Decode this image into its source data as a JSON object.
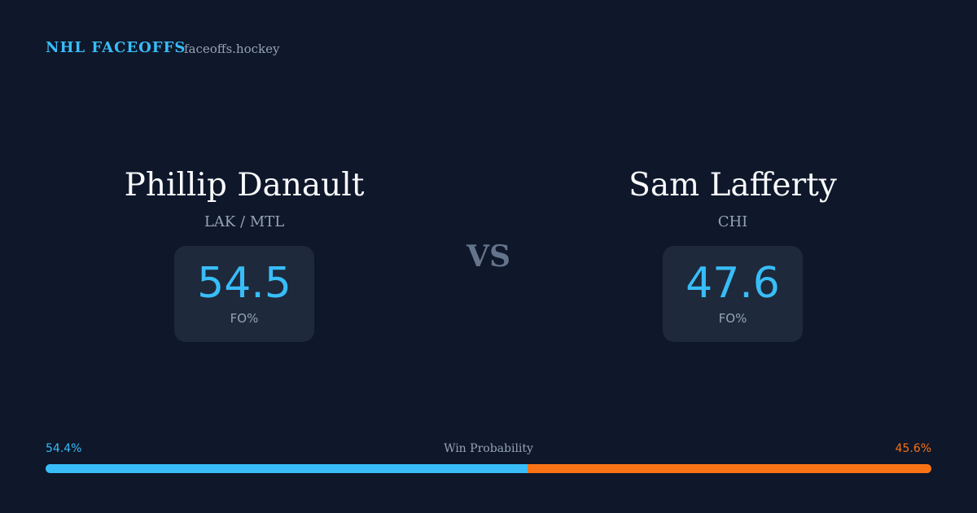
{
  "header": {
    "brand": "NHL FACEOFFS",
    "site": "faceoffs.hockey"
  },
  "players": [
    {
      "name": "Phillip Danault",
      "team": "LAK / MTL",
      "fo_pct": 54.5,
      "fo_label": "FO%"
    },
    {
      "name": "Sam Lafferty",
      "team": "CHI",
      "fo_pct": 47.6,
      "fo_label": "FO%"
    }
  ],
  "vs": "VS",
  "win_probability": {
    "label": "Win Probability",
    "values": [
      54.4,
      45.6
    ],
    "value_labels": [
      "54.4%",
      "45.6%"
    ],
    "colors": [
      "#38bdf8",
      "#f97316"
    ]
  }
}
